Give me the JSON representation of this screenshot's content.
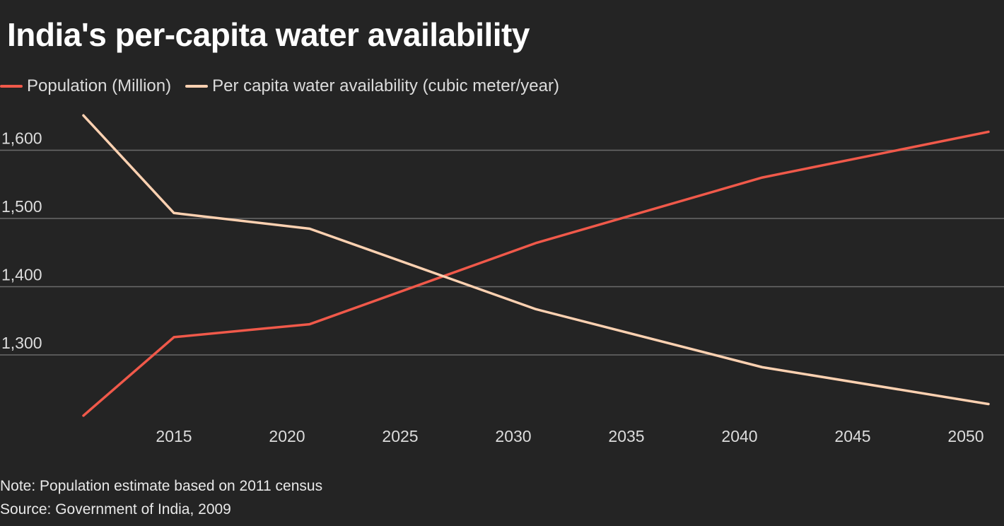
{
  "chart_data": {
    "type": "line",
    "title": "India's per-capita water availability",
    "x": [
      2011,
      2015,
      2021,
      2031,
      2041,
      2051
    ],
    "x_ticks": [
      2015,
      2020,
      2025,
      2030,
      2035,
      2040,
      2045,
      2050
    ],
    "x_tick_labels": [
      "2015",
      "2020",
      "2025",
      "2030",
      "2035",
      "2040",
      "2045",
      "2050"
    ],
    "y_ticks": [
      1300,
      1400,
      1500,
      1600
    ],
    "y_tick_labels": [
      "1,300",
      "1,400",
      "1,500",
      "1,600"
    ],
    "ylim": [
      1200,
      1660
    ],
    "xlim": [
      2011,
      2051
    ],
    "grid": "horizontal",
    "legend_placement": "top-left",
    "series": [
      {
        "name": "Population (Million)",
        "color": "#f0594a",
        "values": [
          1211,
          1326,
          1345,
          1464,
          1560,
          1627
        ]
      },
      {
        "name": "Per capita water availability (cubic meter/year)",
        "color": "#fdd1b1",
        "values": [
          1651,
          1508,
          1485,
          1367,
          1282,
          1228
        ]
      }
    ],
    "notes": [
      "Note: Population estimate based on 2011 census",
      "Source: Government of India, 2009"
    ]
  }
}
